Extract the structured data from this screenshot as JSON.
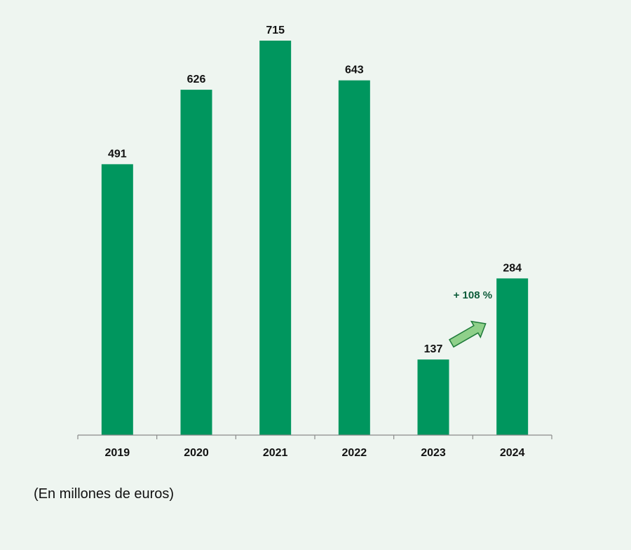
{
  "chart_data": {
    "type": "bar",
    "categories": [
      "2019",
      "2020",
      "2021",
      "2022",
      "2023",
      "2024"
    ],
    "values": [
      491,
      626,
      715,
      643,
      137,
      284
    ],
    "data_labels": [
      "491",
      "626",
      "715",
      "643",
      "137",
      "284"
    ],
    "bar_color": "#00965e",
    "title": "",
    "xlabel": "",
    "ylabel": "",
    "grid": false,
    "legend": "none",
    "annotations": [
      {
        "text": "+ 108 %",
        "from_category": "2023",
        "to_category": "2024",
        "color": "#0d5c3a",
        "arrow_color": "#8fd08a"
      }
    ]
  },
  "footnote": "(En millones de euros)"
}
